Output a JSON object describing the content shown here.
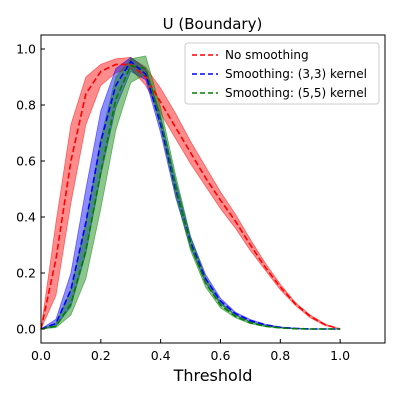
{
  "chart_data": {
    "type": "line",
    "title": "U (Boundary)",
    "xlabel": "Threshold",
    "ylabel": "",
    "xlim": [
      0,
      1.15
    ],
    "ylim": [
      -0.05,
      1.05
    ],
    "xticks": [
      0.0,
      0.2,
      0.4,
      0.6,
      0.8,
      1.0
    ],
    "yticks": [
      0.0,
      0.2,
      0.4,
      0.6,
      0.8,
      1.0
    ],
    "grid": false,
    "legend_position": "top-right",
    "series": [
      {
        "name": "No smoothing",
        "color": "#ff0000",
        "line_style": "dashed",
        "x": [
          0.0,
          0.05,
          0.1,
          0.15,
          0.2,
          0.25,
          0.3,
          0.35,
          0.4,
          0.45,
          0.5,
          0.55,
          0.6,
          0.65,
          0.7,
          0.75,
          0.8,
          0.85,
          0.9,
          0.95,
          1.0
        ],
        "y": [
          0.0,
          0.25,
          0.6,
          0.84,
          0.92,
          0.945,
          0.945,
          0.9,
          0.81,
          0.72,
          0.63,
          0.54,
          0.46,
          0.385,
          0.3,
          0.22,
          0.15,
          0.09,
          0.045,
          0.015,
          0.0
        ],
        "band_lower": [
          0.0,
          0.12,
          0.45,
          0.73,
          0.87,
          0.915,
          0.93,
          0.87,
          0.77,
          0.68,
          0.59,
          0.51,
          0.43,
          0.36,
          0.28,
          0.21,
          0.14,
          0.085,
          0.04,
          0.012,
          0.0
        ],
        "band_upper": [
          0.0,
          0.38,
          0.73,
          0.9,
          0.945,
          0.965,
          0.97,
          0.935,
          0.86,
          0.77,
          0.67,
          0.58,
          0.49,
          0.41,
          0.32,
          0.235,
          0.16,
          0.095,
          0.05,
          0.018,
          0.0
        ]
      },
      {
        "name": "Smoothing: (3,3) kernel",
        "color": "#0000ff",
        "line_style": "dashed",
        "x": [
          0.0,
          0.05,
          0.1,
          0.15,
          0.2,
          0.25,
          0.3,
          0.35,
          0.4,
          0.45,
          0.5,
          0.55,
          0.6,
          0.65,
          0.7,
          0.75,
          0.8,
          0.85,
          0.9,
          0.95,
          1.0
        ],
        "y": [
          0.0,
          0.02,
          0.14,
          0.38,
          0.67,
          0.87,
          0.955,
          0.91,
          0.73,
          0.5,
          0.31,
          0.18,
          0.1,
          0.055,
          0.03,
          0.015,
          0.006,
          0.002,
          0.0,
          0.0,
          0.0
        ],
        "band_lower": [
          0.0,
          0.01,
          0.08,
          0.27,
          0.55,
          0.79,
          0.92,
          0.89,
          0.7,
          0.47,
          0.29,
          0.165,
          0.09,
          0.05,
          0.025,
          0.012,
          0.005,
          0.001,
          0.0,
          0.0,
          0.0
        ],
        "band_upper": [
          0.0,
          0.035,
          0.2,
          0.5,
          0.78,
          0.93,
          0.97,
          0.93,
          0.76,
          0.53,
          0.33,
          0.195,
          0.11,
          0.06,
          0.034,
          0.017,
          0.007,
          0.003,
          0.0,
          0.0,
          0.0
        ]
      },
      {
        "name": "Smoothing: (5,5) kernel",
        "color": "#008000",
        "line_style": "dashed",
        "x": [
          0.0,
          0.05,
          0.1,
          0.15,
          0.2,
          0.25,
          0.3,
          0.35,
          0.4,
          0.45,
          0.5,
          0.55,
          0.6,
          0.65,
          0.7,
          0.75,
          0.8,
          0.85,
          0.9,
          0.95,
          1.0
        ],
        "y": [
          0.0,
          0.01,
          0.09,
          0.28,
          0.56,
          0.82,
          0.94,
          0.93,
          0.75,
          0.51,
          0.3,
          0.165,
          0.085,
          0.045,
          0.022,
          0.01,
          0.004,
          0.001,
          0.0,
          0.0,
          0.0
        ],
        "band_lower": [
          0.0,
          0.005,
          0.05,
          0.18,
          0.43,
          0.71,
          0.88,
          0.91,
          0.72,
          0.48,
          0.28,
          0.15,
          0.075,
          0.04,
          0.019,
          0.008,
          0.003,
          0.001,
          0.0,
          0.0,
          0.0
        ],
        "band_upper": [
          0.0,
          0.02,
          0.14,
          0.38,
          0.68,
          0.9,
          0.965,
          0.975,
          0.79,
          0.55,
          0.33,
          0.185,
          0.095,
          0.05,
          0.026,
          0.012,
          0.005,
          0.002,
          0.0,
          0.0,
          0.0
        ]
      }
    ]
  }
}
